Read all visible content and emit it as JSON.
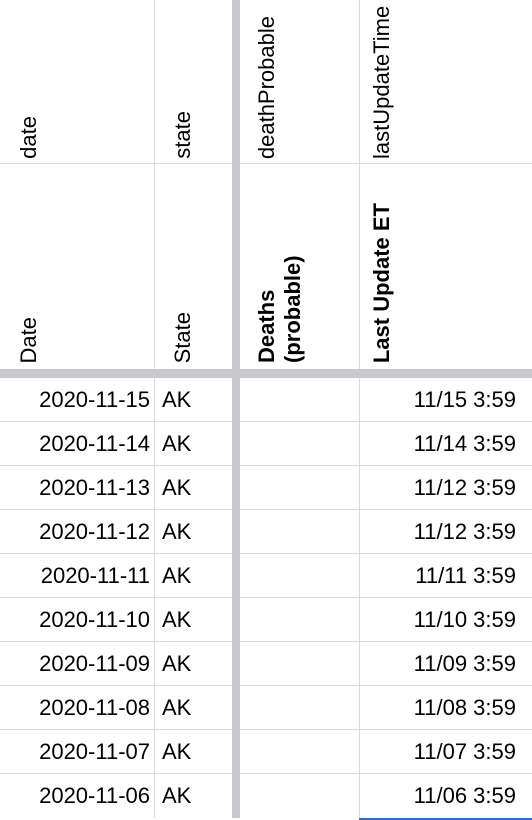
{
  "header_row_1": {
    "date": "date",
    "state": "state",
    "death_probable": "deathProbable",
    "last_update_time": "lastUpdateTime"
  },
  "header_row_2": {
    "date": "Date",
    "state": "State",
    "deaths_probable": "Deaths (probable)",
    "last_update_et": "Last Update ET"
  },
  "rows": [
    {
      "date": "2020-11-15",
      "state": "AK",
      "deaths_probable": "",
      "last_update": "11/15 3:59"
    },
    {
      "date": "2020-11-14",
      "state": "AK",
      "deaths_probable": "",
      "last_update": "11/14 3:59"
    },
    {
      "date": "2020-11-13",
      "state": "AK",
      "deaths_probable": "",
      "last_update": "11/12 3:59"
    },
    {
      "date": "2020-11-12",
      "state": "AK",
      "deaths_probable": "",
      "last_update": "11/12 3:59"
    },
    {
      "date": "2020-11-11",
      "state": "AK",
      "deaths_probable": "",
      "last_update": "11/11 3:59"
    },
    {
      "date": "2020-11-10",
      "state": "AK",
      "deaths_probable": "",
      "last_update": "11/10 3:59"
    },
    {
      "date": "2020-11-09",
      "state": "AK",
      "deaths_probable": "",
      "last_update": "11/09 3:59"
    },
    {
      "date": "2020-11-08",
      "state": "AK",
      "deaths_probable": "",
      "last_update": "11/08 3:59"
    },
    {
      "date": "2020-11-07",
      "state": "AK",
      "deaths_probable": "",
      "last_update": "11/07 3:59"
    },
    {
      "date": "2020-11-06",
      "state": "AK",
      "deaths_probable": "",
      "last_update": "11/06 3:59"
    }
  ]
}
